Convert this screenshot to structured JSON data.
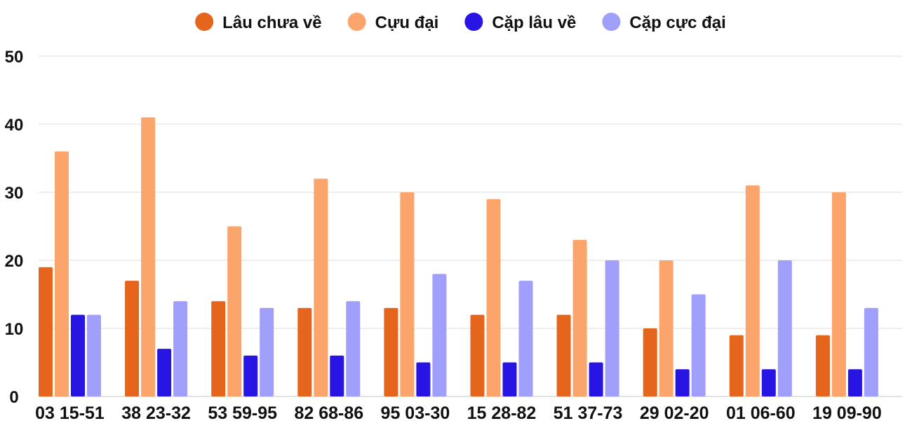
{
  "chart_data": {
    "type": "bar",
    "title": "",
    "xlabel": "",
    "ylabel": "",
    "ylim": [
      0,
      50
    ],
    "yticks": [
      0,
      10,
      20,
      30,
      40,
      50
    ],
    "grid": true,
    "legend_position": "top-center",
    "categories": [
      "03 15-51",
      "38 23-32",
      "53 59-95",
      "82 68-86",
      "95 03-30",
      "15 28-82",
      "51 37-73",
      "29 02-20",
      "01 06-60",
      "19 09-90"
    ],
    "series": [
      {
        "name": "Lâu chưa về",
        "color": "#e4651b",
        "values": [
          19,
          17,
          14,
          13,
          13,
          12,
          12,
          10,
          9,
          9
        ]
      },
      {
        "name": "Cựu đại",
        "color": "#fba46b",
        "values": [
          36,
          41,
          25,
          32,
          30,
          29,
          23,
          20,
          31,
          30
        ]
      },
      {
        "name": "Cặp lâu về",
        "color": "#2814e3",
        "values": [
          12,
          7,
          6,
          6,
          5,
          5,
          5,
          4,
          4,
          4
        ]
      },
      {
        "name": "Cặp cực đại",
        "color": "#a19ffc",
        "values": [
          12,
          14,
          13,
          14,
          18,
          17,
          20,
          15,
          20,
          13
        ]
      }
    ]
  }
}
